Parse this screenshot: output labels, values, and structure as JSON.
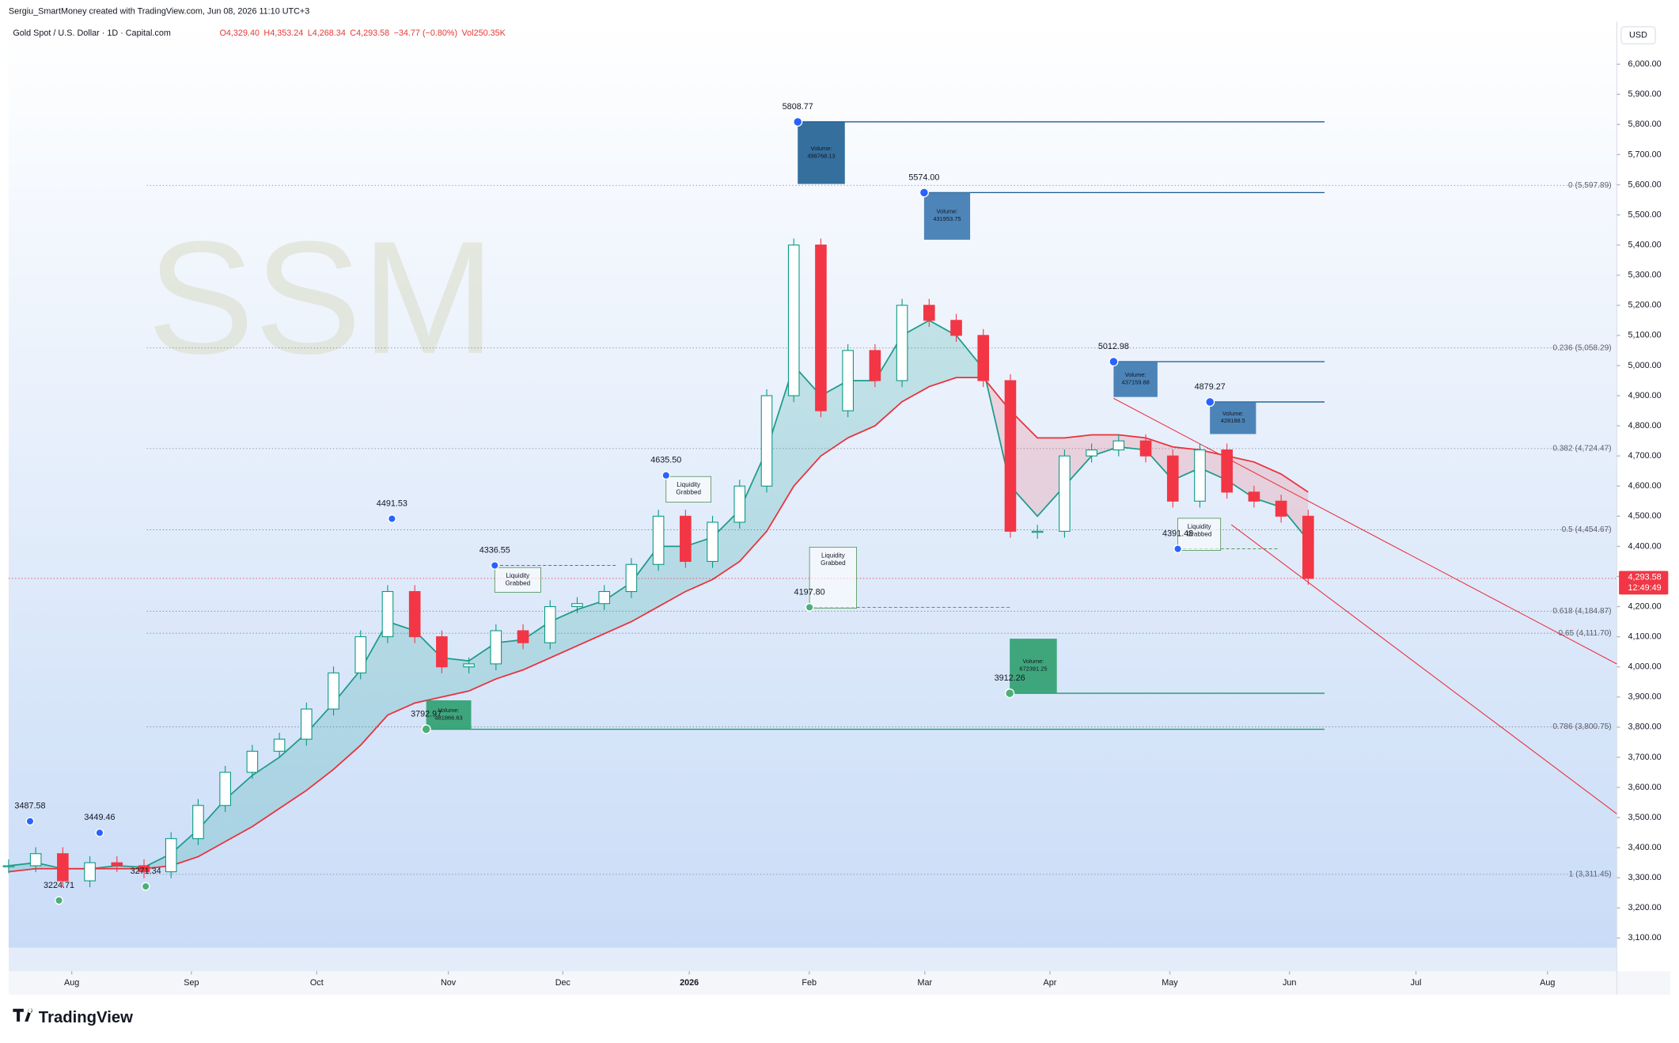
{
  "header": {
    "byline": "Sergiu_SmartMoney created with TradingView.com, Jun 08, 2026 11:10 UTC+3",
    "symbol": "Gold Spot / U.S. Dollar · 1D · Capital.com",
    "ohlc": [
      "O4,329.40",
      "H4,353.24",
      "L4,268.34",
      "C4,293.58",
      "−34.77 (−0.80%)",
      "Vol250.35K"
    ],
    "currency": "USD",
    "brand": "TradingView",
    "watermark": "SSM"
  },
  "chart_data": {
    "type": "candlestick",
    "xlim": [
      0,
      59.4
    ],
    "ylim": [
      3068,
      6135
    ],
    "xticks": [
      {
        "value": 2.33,
        "label": "Aug"
      },
      {
        "value": 6.75,
        "label": "Sep"
      },
      {
        "value": 11.38,
        "label": "Oct"
      },
      {
        "value": 16.24,
        "label": "Nov"
      },
      {
        "value": 20.47,
        "label": "Dec"
      },
      {
        "value": 25.14,
        "label": "2026"
      },
      {
        "value": 29.57,
        "label": "Feb"
      },
      {
        "value": 33.84,
        "label": "Mar"
      },
      {
        "value": 38.46,
        "label": "Apr"
      },
      {
        "value": 42.89,
        "label": "May"
      },
      {
        "value": 47.31,
        "label": "Jun"
      },
      {
        "value": 51.98,
        "label": "Jul"
      },
      {
        "value": 56.84,
        "label": "Aug"
      }
    ],
    "yticks": [
      {
        "value": 3100,
        "label": "3,100.00"
      },
      {
        "value": 3200,
        "label": "3,200.00"
      },
      {
        "value": 3300,
        "label": "3,300.00"
      },
      {
        "value": 3400,
        "label": "3,400.00"
      },
      {
        "value": 3500,
        "label": "3,500.00"
      },
      {
        "value": 3600,
        "label": "3,600.00"
      },
      {
        "value": 3700,
        "label": "3,700.00"
      },
      {
        "value": 3800,
        "label": "3,800.00"
      },
      {
        "value": 3900,
        "label": "3,900.00"
      },
      {
        "value": 4000,
        "label": "4,000.00"
      },
      {
        "value": 4100,
        "label": "4,100.00"
      },
      {
        "value": 4200,
        "label": "4,200.00"
      },
      {
        "value": 4300,
        "label": "4,300.00"
      },
      {
        "value": 4400,
        "label": "4,400.00"
      },
      {
        "value": 4500,
        "label": "4,500.00"
      },
      {
        "value": 4600,
        "label": "4,600.00"
      },
      {
        "value": 4700,
        "label": "4,700.00"
      },
      {
        "value": 4800,
        "label": "4,800.00"
      },
      {
        "value": 4900,
        "label": "4,900.00"
      },
      {
        "value": 5000,
        "label": "5,000.00"
      },
      {
        "value": 5100,
        "label": "5,100.00"
      },
      {
        "value": 5200,
        "label": "5,200.00"
      },
      {
        "value": 5300,
        "label": "5,300.00"
      },
      {
        "value": 5400,
        "label": "5,400.00"
      },
      {
        "value": 5500,
        "label": "5,500.00"
      },
      {
        "value": 5600,
        "label": "5,600.00"
      },
      {
        "value": 5700,
        "label": "5,700.00"
      },
      {
        "value": 5800,
        "label": "5,800.00"
      },
      {
        "value": 5900,
        "label": "5,900.00"
      },
      {
        "value": 6000,
        "label": "6,000.00"
      }
    ],
    "series": [
      {
        "up_color": "#089981",
        "down_color": "#f23645",
        "values": [
          3340,
          3380,
          3290,
          3350,
          3340,
          3320,
          3430,
          3540,
          3650,
          3720,
          3760,
          3860,
          3980,
          4100,
          4250,
          4100,
          4000,
          4010,
          4120,
          4080,
          4200,
          4210,
          4250,
          4340,
          4500,
          4350,
          4480,
          4600,
          4900,
          5400,
          4850,
          5050,
          4950,
          5200,
          5150,
          5100,
          4950,
          4450,
          4450,
          4700,
          4720,
          4750,
          4700,
          4550,
          4720,
          4580,
          4550,
          4500,
          4293.58
        ]
      },
      {
        "color": "#1e9b8a",
        "values": [
          3340,
          3350,
          3330,
          3330,
          3340,
          3335,
          3380,
          3460,
          3560,
          3640,
          3700,
          3780,
          3880,
          3990,
          4150,
          4120,
          4030,
          4020,
          4080,
          4090,
          4150,
          4190,
          4220,
          4280,
          4400,
          4400,
          4430,
          4520,
          4720,
          5000,
          4900,
          4950,
          4950,
          5100,
          5150,
          5100,
          4990,
          4600,
          4500,
          4600,
          4700,
          4730,
          4720,
          4620,
          4660,
          4620,
          4560,
          4530,
          4420
        ]
      },
      {
        "color": "#e8323c",
        "values": [
          3320,
          3330,
          3330,
          3330,
          3330,
          3330,
          3340,
          3370,
          3420,
          3470,
          3530,
          3590,
          3660,
          3740,
          3840,
          3880,
          3900,
          3920,
          3960,
          3990,
          4030,
          4070,
          4110,
          4150,
          4200,
          4250,
          4290,
          4350,
          4450,
          4600,
          4700,
          4760,
          4800,
          4880,
          4930,
          4960,
          4960,
          4850,
          4760,
          4760,
          4770,
          4770,
          4760,
          4730,
          4720,
          4700,
          4680,
          4640,
          4580
        ]
      }
    ],
    "price_labels": [
      3487.58,
      3449.46,
      3224.71,
      3271.34,
      4491.53,
      4336.55,
      {
        "value": 4635.5,
        "label": "4635.50"
      },
      5808.77,
      {
        "value": 5574,
        "label": "5574.00"
      },
      {
        "value": 4197.8,
        "label": "4197.80"
      },
      3912.26,
      3792.97,
      5012.98,
      4879.27,
      4391.48
    ],
    "volume_label": "Volume:",
    "volumes": [
      498768.13,
      431953.75,
      437159.88,
      428188.5,
      672391.25,
      481866.63
    ],
    "liquidity_label": [
      "Liquidity",
      "Grabbed"
    ],
    "fib_levels": [
      {
        "value": 5597.89,
        "label": "0 (5,597.89)"
      },
      {
        "value": 5058.29,
        "label": "0.236 (5,058.29)"
      },
      {
        "value": 4724.47,
        "label": "0.382 (4,724.47)"
      },
      {
        "value": 4454.67,
        "label": "0.5 (4,454.67)"
      },
      {
        "value": 4184.87,
        "label": "0.618 (4,184.87)"
      },
      {
        "value": 4111.7,
        "label": "0.65 (4,111.70)"
      },
      {
        "value": 3800.75,
        "label": "0.786 (3,800.75)"
      },
      {
        "value": 3311.45,
        "label": "1 (3,311.45)"
      }
    ],
    "last_price": {
      "value": 4293.58,
      "label": "4,293.58"
    },
    "countdown": "12:49:49"
  }
}
